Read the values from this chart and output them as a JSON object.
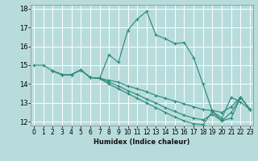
{
  "background_color": "#b8dcdc",
  "grid_color": "#d0eeee",
  "line_color": "#2e8b7a",
  "xlabel": "Humidex (Indice chaleur)",
  "ylim": [
    11.8,
    18.2
  ],
  "xlim": [
    -0.3,
    23.3
  ],
  "yticks": [
    12,
    13,
    14,
    15,
    16,
    17,
    18
  ],
  "xticks": [
    0,
    1,
    2,
    3,
    4,
    5,
    6,
    7,
    8,
    9,
    10,
    11,
    12,
    13,
    14,
    15,
    16,
    17,
    18,
    19,
    20,
    21,
    22,
    23
  ],
  "curves": [
    {
      "x": [
        0,
        1,
        2,
        3,
        4,
        5,
        6,
        7,
        8,
        9,
        10,
        11,
        12,
        13,
        14,
        15,
        16,
        17,
        18,
        19,
        20,
        21,
        22,
        23
      ],
      "y": [
        15.0,
        15.0,
        14.7,
        14.5,
        14.5,
        14.75,
        14.35,
        14.3,
        15.55,
        15.15,
        16.85,
        17.45,
        17.85,
        16.6,
        16.4,
        16.15,
        16.2,
        15.4,
        14.0,
        12.55,
        12.2,
        13.3,
        13.05,
        12.65
      ]
    },
    {
      "x": [
        2,
        3,
        4,
        5,
        6,
        7,
        8,
        9,
        10,
        11,
        12,
        13,
        14,
        15,
        16,
        17,
        18,
        19,
        20,
        21,
        22,
        23
      ],
      "y": [
        14.7,
        14.5,
        14.5,
        14.75,
        14.35,
        14.3,
        14.2,
        14.1,
        13.9,
        13.75,
        13.6,
        13.4,
        13.25,
        13.1,
        12.95,
        12.8,
        12.65,
        12.6,
        12.5,
        12.8,
        13.3,
        12.65
      ]
    },
    {
      "x": [
        2,
        3,
        4,
        5,
        6,
        7,
        8,
        9,
        10,
        11,
        12,
        13,
        14,
        15,
        16,
        17,
        18,
        19,
        20,
        21,
        22,
        23
      ],
      "y": [
        14.7,
        14.5,
        14.5,
        14.75,
        14.35,
        14.3,
        14.1,
        13.9,
        13.65,
        13.45,
        13.2,
        13.0,
        12.75,
        12.55,
        12.35,
        12.2,
        12.1,
        12.4,
        12.05,
        12.5,
        13.3,
        12.65
      ]
    },
    {
      "x": [
        2,
        3,
        4,
        5,
        6,
        7,
        8,
        9,
        10,
        11,
        12,
        13,
        14,
        15,
        16,
        17,
        18,
        19,
        20,
        21,
        22,
        23
      ],
      "y": [
        14.7,
        14.5,
        14.5,
        14.75,
        14.35,
        14.3,
        14.0,
        13.75,
        13.5,
        13.25,
        13.0,
        12.75,
        12.5,
        12.25,
        12.05,
        11.9,
        11.85,
        12.55,
        12.05,
        12.2,
        13.3,
        12.65
      ]
    }
  ]
}
